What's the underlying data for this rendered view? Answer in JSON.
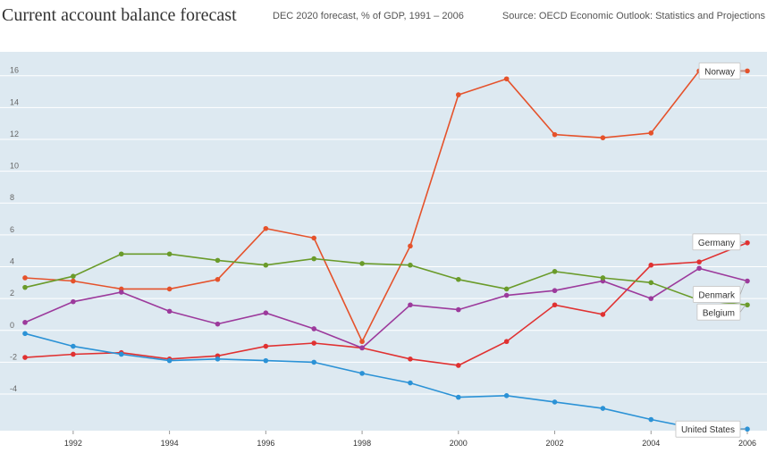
{
  "header": {
    "title": "Current account balance forecast",
    "subtitle": "DEC 2020 forecast, % of GDP, 1991 – 2006",
    "source": "Source: OECD Economic Outlook: Statistics and Projections"
  },
  "colors": {
    "plot_background": "#dde9f1",
    "Norway": "#e5522b",
    "Germany": "#e03131",
    "Denmark": "#9c3a9c",
    "Belgium": "#6a9b2a",
    "United States": "#2b92d6"
  },
  "chart_data": {
    "type": "line",
    "title": "Current account balance forecast",
    "subtitle": "DEC 2020 forecast, % of GDP, 1991 – 2006",
    "xlabel": "",
    "ylabel": "",
    "xlim": [
      1991,
      2006
    ],
    "ylim": [
      -6.3,
      17.5
    ],
    "grid": true,
    "legend": "right (line-end labels)",
    "x": [
      1991,
      1992,
      1993,
      1994,
      1995,
      1996,
      1997,
      1998,
      1999,
      2000,
      2001,
      2002,
      2003,
      2004,
      2005,
      2006
    ],
    "x_ticks": [
      "1992",
      "1994",
      "1996",
      "1998",
      "2000",
      "2002",
      "2004",
      "2006"
    ],
    "y_ticks": [
      "16",
      "14",
      "12",
      "10",
      "8",
      "6",
      "4",
      "2",
      "0",
      "-2",
      "-4"
    ],
    "series": [
      {
        "name": "Norway",
        "values": [
          3.3,
          3.1,
          2.6,
          2.6,
          3.2,
          6.4,
          5.8,
          -0.7,
          5.3,
          14.8,
          15.8,
          12.3,
          12.1,
          12.4,
          16.3,
          16.3
        ]
      },
      {
        "name": "Germany",
        "values": [
          -1.7,
          -1.5,
          -1.4,
          -1.8,
          -1.6,
          -1.0,
          -0.8,
          -1.1,
          -1.8,
          -2.2,
          -0.7,
          1.6,
          1.0,
          4.1,
          4.3,
          5.5
        ]
      },
      {
        "name": "Denmark",
        "values": [
          0.5,
          1.8,
          2.4,
          1.2,
          0.4,
          1.1,
          0.1,
          -1.1,
          1.6,
          1.3,
          2.2,
          2.5,
          3.1,
          2.0,
          3.9,
          3.1
        ]
      },
      {
        "name": "Belgium",
        "values": [
          2.7,
          3.4,
          4.8,
          4.8,
          4.4,
          4.1,
          4.5,
          4.2,
          4.1,
          3.2,
          2.6,
          3.7,
          3.3,
          3.0,
          1.9,
          1.6
        ]
      },
      {
        "name": "United States",
        "values": [
          -0.2,
          -1.0,
          -1.5,
          -1.9,
          -1.8,
          -1.9,
          -2.0,
          -2.7,
          -3.3,
          -4.2,
          -4.1,
          -4.5,
          -4.9,
          -5.6,
          -6.2,
          -6.2
        ]
      }
    ]
  }
}
